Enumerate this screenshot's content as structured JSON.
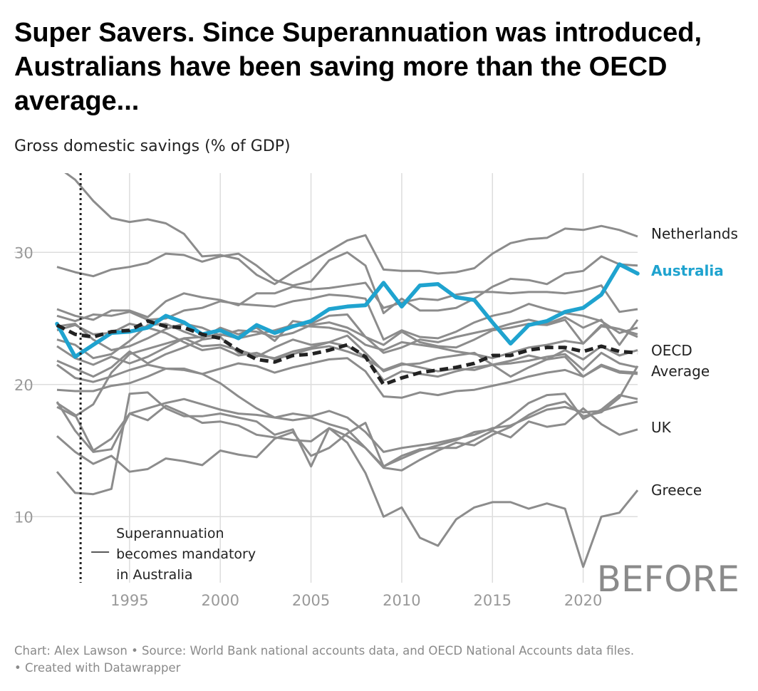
{
  "title": "Super Savers. Since Superannuation was introduced, Australians have been saving more than the OECD average...",
  "subtitle": "Gross domestic savings (% of GDP)",
  "footer": {
    "line1": "Chart: Alex Lawson • Source: World Bank national accounts data, and OECD National Accounts data files.",
    "line2": "• Created with Datawrapper"
  },
  "colors": {
    "australia": "#1fa3cf",
    "oecd": "#222222",
    "other_countries": "#8c8c8c",
    "grid": "#dddddd",
    "tick_text": "#999999"
  },
  "chart_data": {
    "type": "line",
    "x_start_year": 1991,
    "xlim": [
      1991,
      2023
    ],
    "ylim": [
      5,
      36
    ],
    "x_ticks": [
      1995,
      2000,
      2005,
      2010,
      2015,
      2020
    ],
    "y_ticks": [
      10,
      20,
      30
    ],
    "grid": true,
    "watermark": "BEFORE",
    "annotation": {
      "x": 1992.3,
      "text_lines": [
        "Superannuation",
        "becomes mandatory",
        "in Australia"
      ]
    },
    "highlight_series": [
      {
        "name": "Australia",
        "style": "thick",
        "values": [
          24.6,
          22.1,
          23.0,
          23.9,
          24.0,
          24.3,
          25.2,
          24.7,
          23.8,
          24.1,
          23.5,
          24.5,
          23.9,
          24.4,
          24.8,
          25.7,
          25.9,
          26.0,
          27.7,
          25.9,
          27.5,
          27.6,
          26.6,
          26.4,
          24.7,
          23.1,
          24.5,
          24.8,
          25.5,
          25.8,
          26.8,
          29.1,
          28.4
        ]
      },
      {
        "name": "OECD Average",
        "style": "dashed",
        "values": [
          24.5,
          23.8,
          23.6,
          24.0,
          24.1,
          24.8,
          24.4,
          24.3,
          23.8,
          23.5,
          22.6,
          21.9,
          21.7,
          22.2,
          22.3,
          22.6,
          23.0,
          22.1,
          20.0,
          20.5,
          20.9,
          21.1,
          21.3,
          21.6,
          22.2,
          22.2,
          22.6,
          22.8,
          22.8,
          22.5,
          22.9,
          22.5,
          22.4
        ]
      }
    ],
    "labeled_series": [
      {
        "name": "Netherlands",
        "values": [
          36.5,
          35.5,
          33.9,
          32.6,
          32.3,
          32.5,
          32.2,
          31.4,
          29.7,
          29.8,
          29.5,
          28.3,
          27.6,
          28.5,
          29.3,
          30.1,
          30.9,
          31.3,
          28.7,
          28.6,
          28.6,
          28.4,
          28.5,
          28.8,
          29.9,
          30.7,
          31.0,
          31.1,
          31.8,
          31.7,
          32.0,
          31.7,
          31.2
        ]
      },
      {
        "name": "UK",
        "values": [
          18.6,
          17.7,
          15.0,
          15.9,
          17.8,
          17.3,
          18.4,
          17.8,
          17.1,
          17.2,
          16.9,
          16.2,
          16.0,
          15.8,
          15.7,
          16.7,
          16.1,
          15.2,
          13.8,
          14.6,
          15.1,
          15.2,
          15.2,
          15.8,
          16.5,
          16.0,
          17.2,
          16.8,
          17.0,
          18.2,
          17.0,
          16.2,
          16.6
        ]
      },
      {
        "name": "Greece",
        "values": [
          13.4,
          11.8,
          11.7,
          12.1,
          19.3,
          19.4,
          18.2,
          17.6,
          17.6,
          17.8,
          17.5,
          17.2,
          16.2,
          16.6,
          13.8,
          16.7,
          15.6,
          13.3,
          10.0,
          10.7,
          8.4,
          7.8,
          9.8,
          10.7,
          11.1,
          11.1,
          10.6,
          11.0,
          10.6,
          6.2,
          10.0,
          10.3,
          12.0
        ]
      }
    ],
    "other_series": [
      {
        "values": [
          28.9,
          28.5,
          28.2,
          28.7,
          28.9,
          29.2,
          29.9,
          29.8,
          29.3,
          29.7,
          29.9,
          29.0,
          27.9,
          27.5,
          27.8,
          29.4,
          30.0,
          29.0,
          25.4,
          26.5,
          25.6,
          25.6,
          25.8,
          26.5,
          27.4,
          28.0,
          27.9,
          27.6,
          28.4,
          28.6,
          29.7,
          29.1,
          29.0
        ]
      },
      {
        "values": [
          25.7,
          25.2,
          24.9,
          25.6,
          25.6,
          25.1,
          26.3,
          26.9,
          26.6,
          26.4,
          26.0,
          26.9,
          26.9,
          27.4,
          27.2,
          27.3,
          27.5,
          27.7,
          25.8,
          26.2,
          26.5,
          26.4,
          26.8,
          27.0,
          27.0,
          26.9,
          27.0,
          27.0,
          26.9,
          27.1,
          27.5,
          25.5,
          25.7
        ]
      },
      {
        "values": [
          25.2,
          24.8,
          25.3,
          25.2,
          25.5,
          24.9,
          25.0,
          25.6,
          25.8,
          26.3,
          26.1,
          26.0,
          25.9,
          26.3,
          26.5,
          26.8,
          26.7,
          26.5,
          23.4,
          24.1,
          23.6,
          23.5,
          24.0,
          24.7,
          25.2,
          25.5,
          26.1,
          25.7,
          25.4,
          25.2,
          24.8,
          23.9,
          24.3
        ]
      },
      {
        "values": [
          23.4,
          23.0,
          22.0,
          22.3,
          23.3,
          24.5,
          24.6,
          24.0,
          23.5,
          24.3,
          23.8,
          24.3,
          23.3,
          24.8,
          24.6,
          25.2,
          25.3,
          23.6,
          23.0,
          24.0,
          23.2,
          22.9,
          22.8,
          23.4,
          24.1,
          24.3,
          24.6,
          24.5,
          24.9,
          23.1,
          24.5,
          24.2,
          23.8
        ]
      },
      {
        "values": [
          24.1,
          24.5,
          23.8,
          23.9,
          24.6,
          24.3,
          23.9,
          23.2,
          22.6,
          22.8,
          22.2,
          22.4,
          21.9,
          22.3,
          22.7,
          22.9,
          22.5,
          22.0,
          21.1,
          21.6,
          21.3,
          21.0,
          21.2,
          21.1,
          21.5,
          21.6,
          21.8,
          22.1,
          22.3,
          21.1,
          22.4,
          21.6,
          21.3
        ]
      },
      {
        "values": [
          22.9,
          22.0,
          21.5,
          22.1,
          21.6,
          22.1,
          22.8,
          23.5,
          22.9,
          23.0,
          22.6,
          22.2,
          22.0,
          22.5,
          22.8,
          23.2,
          22.9,
          22.1,
          20.3,
          21.0,
          20.8,
          20.6,
          21.0,
          21.3,
          21.5,
          21.8,
          22.2,
          21.9,
          22.1,
          20.6,
          21.5,
          21.0,
          20.9
        ]
      },
      {
        "values": [
          21.5,
          20.5,
          20.2,
          20.6,
          21.1,
          21.5,
          21.2,
          21.1,
          20.8,
          21.2,
          21.6,
          21.4,
          20.9,
          21.3,
          21.6,
          21.9,
          22.0,
          21.0,
          19.1,
          19.0,
          19.4,
          19.2,
          19.5,
          19.6,
          19.9,
          20.2,
          20.6,
          20.9,
          21.1,
          20.6,
          21.4,
          20.9,
          20.8
        ]
      },
      {
        "values": [
          19.6,
          19.5,
          19.5,
          19.9,
          20.1,
          20.6,
          21.2,
          21.2,
          20.8,
          20.1,
          19.1,
          18.2,
          17.5,
          17.8,
          17.6,
          18.0,
          17.5,
          16.4,
          14.9,
          15.2,
          15.4,
          15.6,
          15.9,
          16.2,
          16.7,
          16.9,
          17.5,
          18.1,
          18.3,
          17.9,
          18.0,
          18.4,
          18.7
        ]
      },
      {
        "values": [
          18.3,
          17.6,
          18.5,
          20.9,
          22.3,
          22.7,
          23.1,
          23.5,
          23.6,
          23.8,
          23.5,
          23.8,
          24.1,
          24.5,
          24.4,
          24.3,
          24.0,
          23.0,
          22.6,
          23.2,
          23.0,
          22.8,
          22.5,
          22.3,
          22.0,
          22.4,
          22.8,
          23.0,
          23.3,
          23.1,
          24.4,
          24.2,
          23.6
        ]
      },
      {
        "values": [
          18.7,
          16.5,
          14.9,
          15.1,
          17.8,
          18.2,
          18.6,
          18.9,
          18.5,
          18.1,
          17.8,
          17.7,
          17.5,
          17.3,
          17.5,
          17.0,
          16.6,
          15.2,
          13.7,
          13.5,
          14.3,
          15.0,
          15.6,
          15.4,
          16.2,
          16.8,
          17.7,
          18.4,
          18.7,
          17.6,
          17.9,
          19.0,
          21.4
        ]
      },
      {
        "values": [
          16.1,
          14.9,
          14.0,
          14.6,
          13.4,
          13.6,
          14.4,
          14.2,
          13.9,
          15.0,
          14.7,
          14.5,
          15.9,
          16.4,
          14.6,
          15.2,
          16.3,
          17.1,
          13.8,
          14.4,
          15.0,
          15.4,
          15.8,
          16.4,
          16.6,
          17.5,
          18.6,
          19.2,
          19.3,
          17.4,
          18.1,
          19.2,
          18.9
        ]
      },
      {
        "values": [
          21.8,
          21.2,
          20.6,
          21.3,
          22.5,
          21.6,
          22.3,
          22.8,
          23.4,
          23.6,
          22.4,
          22.1,
          22.8,
          23.4,
          23.0,
          23.2,
          23.7,
          22.4,
          21.0,
          21.5,
          21.6,
          22.0,
          22.2,
          22.4,
          21.5,
          20.6,
          21.3,
          21.9,
          22.6,
          21.9,
          22.9,
          22.2,
          22.6
        ]
      },
      {
        "values": [
          24.4,
          24.6,
          23.4,
          22.6,
          22.9,
          23.5,
          24.2,
          24.6,
          24.3,
          23.7,
          24.1,
          24.0,
          23.6,
          23.9,
          24.5,
          24.7,
          24.3,
          23.6,
          22.4,
          22.8,
          23.4,
          23.2,
          23.6,
          23.9,
          24.2,
          24.6,
          24.9,
          24.6,
          25.1,
          24.3,
          24.9,
          23.0,
          24.9
        ]
      }
    ]
  }
}
